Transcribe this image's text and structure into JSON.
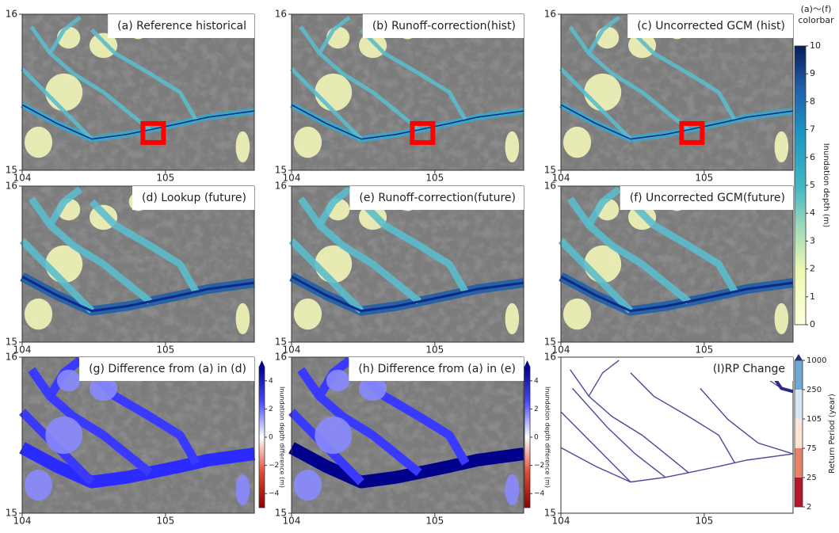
{
  "panels": [
    {
      "title": "(a) Reference historical",
      "xticks": [
        104,
        105
      ],
      "yticks": [
        15,
        16
      ]
    },
    {
      "title": "(b) Runoff-correction(hist)",
      "xticks": [
        104,
        105
      ],
      "yticks": [
        15,
        16
      ]
    },
    {
      "title": "(c) Uncorrected GCM (hist)",
      "xticks": [
        104,
        105
      ],
      "yticks": [
        15,
        16
      ]
    },
    {
      "title": "(d) Lookup (future)",
      "xticks": [
        104,
        105
      ],
      "yticks": [
        15,
        16
      ]
    },
    {
      "title": "(e) Runoff-correction(future)",
      "xticks": [
        104,
        105
      ],
      "yticks": [
        15,
        16
      ]
    },
    {
      "title": "(f) Uncorrected GCM(future)",
      "xticks": [
        104,
        105
      ],
      "yticks": [
        15,
        16
      ]
    },
    {
      "title": "(g) Difference from (a) in (d)",
      "xticks": [
        104,
        105
      ],
      "yticks": [
        15,
        16
      ]
    },
    {
      "title": "(h) Difference from (a) in (e)",
      "xticks": [
        104,
        105
      ],
      "yticks": [
        15,
        16
      ]
    },
    {
      "title": "(I)RP Change",
      "xticks": [
        104,
        105
      ],
      "yticks": [
        15,
        16
      ]
    }
  ],
  "xlim": [
    104,
    105.62
  ],
  "ylim": [
    15,
    16
  ],
  "colorbars": {
    "depth": {
      "title": [
        "(a)〜(f)",
        "colorbar"
      ],
      "label": "Inundation  depth  (m)",
      "lim": [
        0,
        10
      ],
      "ticks": [
        0,
        1,
        2,
        3,
        4,
        5,
        6,
        7,
        8,
        9,
        10
      ]
    },
    "diff_g": {
      "label": "Inundation depth difference  (m)",
      "lim": [
        -5,
        5
      ],
      "ticks": [
        4,
        2,
        0,
        {
          "value": -2,
          "label": "−2"
        },
        {
          "value": -4,
          "label": "−4"
        }
      ]
    },
    "diff_h": {
      "label": "Inundation depth difference  (m)",
      "lim": [
        -5,
        5
      ],
      "ticks": [
        4,
        2,
        0,
        {
          "value": -2,
          "label": "−2"
        },
        {
          "value": -4,
          "label": "−4"
        }
      ]
    },
    "rp": {
      "label": "Return  Period  (year)",
      "ticks": [
        2,
        25,
        75,
        105,
        250,
        1000
      ]
    }
  }
}
